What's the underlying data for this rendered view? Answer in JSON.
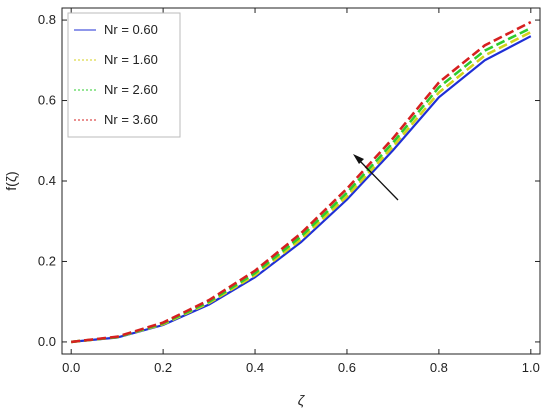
{
  "chart_data": {
    "type": "line",
    "title": "",
    "xlabel": "ζ",
    "ylabel": "f(ζ)",
    "xlim": [
      -0.02,
      1.02
    ],
    "ylim": [
      -0.03,
      0.83
    ],
    "xticks": [
      "0.0",
      "0.2",
      "0.4",
      "0.6",
      "0.8",
      "1.0"
    ],
    "yticks": [
      "0.0",
      "0.2",
      "0.4",
      "0.6",
      "0.8"
    ],
    "grid": false,
    "legend_position": "top-left",
    "x": [
      0.0,
      0.1,
      0.2,
      0.3,
      0.4,
      0.5,
      0.6,
      0.7,
      0.8,
      0.9,
      1.0
    ],
    "series": [
      {
        "name": "Nr = 0.60",
        "color": "#1f2fd6",
        "dash": "solid",
        "values": [
          0.0,
          0.011,
          0.042,
          0.093,
          0.161,
          0.248,
          0.354,
          0.476,
          0.608,
          0.7,
          0.76
        ]
      },
      {
        "name": "Nr = 1.60",
        "color": "#d4d21c",
        "dash": "dashed",
        "values": [
          0.0,
          0.012,
          0.044,
          0.097,
          0.166,
          0.255,
          0.362,
          0.485,
          0.62,
          0.712,
          0.77
        ]
      },
      {
        "name": "Nr = 2.60",
        "color": "#2ecc2e",
        "dash": "dashed",
        "values": [
          0.0,
          0.012,
          0.046,
          0.1,
          0.171,
          0.262,
          0.371,
          0.495,
          0.633,
          0.724,
          0.78
        ]
      },
      {
        "name": "Nr = 3.60",
        "color": "#d62020",
        "dash": "dashed",
        "values": [
          0.0,
          0.013,
          0.048,
          0.104,
          0.177,
          0.27,
          0.381,
          0.506,
          0.645,
          0.737,
          0.795
        ]
      }
    ]
  }
}
